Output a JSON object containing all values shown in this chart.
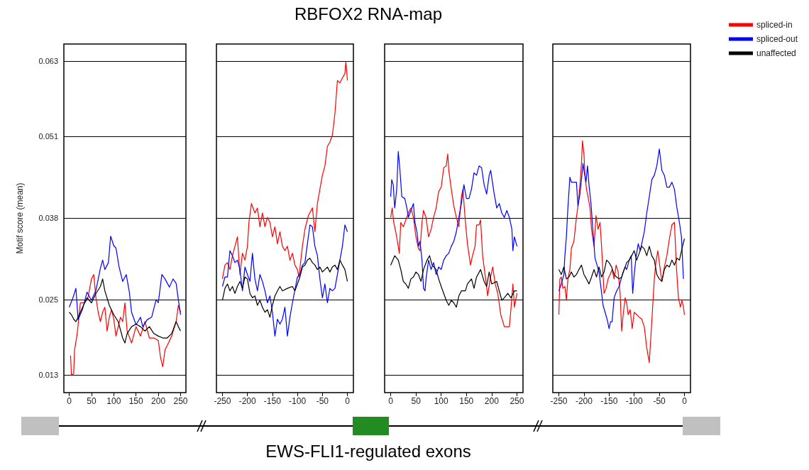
{
  "chart_data": [
    {
      "type": "other",
      "title": "RBFOX2 RNA-map",
      "annotations": [
        "EWS-FLI1-regulated exons"
      ]
    },
    {
      "type": "line",
      "ylabel": "Motif score (mean)",
      "xlim": [
        -12,
        262
      ],
      "xticks": [
        0,
        50,
        100,
        150,
        200,
        250
      ],
      "ylim": [
        0.0102,
        0.0657
      ],
      "yticks": [
        0.013,
        0.025,
        0.038,
        0.051,
        0.063
      ],
      "grid": "y",
      "series": [
        {
          "color": "#ff0000",
          "x": [
            3,
            5,
            10,
            12,
            18,
            25,
            35,
            42,
            50,
            55,
            60,
            65,
            70,
            75,
            80,
            85,
            90,
            95,
            100,
            105,
            110,
            115,
            120,
            125,
            130,
            140,
            150,
            160,
            170,
            180,
            190,
            200,
            205,
            210,
            215,
            220,
            230,
            240,
            245,
            250
          ],
          "values": [
            0.0161,
            0.013,
            0.0132,
            0.017,
            0.0196,
            0.0245,
            0.0245,
            0.0253,
            0.0283,
            0.029,
            0.0253,
            0.023,
            0.0215,
            0.023,
            0.0238,
            0.02,
            0.0222,
            0.0234,
            0.0219,
            0.0192,
            0.0207,
            0.0222,
            0.0215,
            0.0245,
            0.02,
            0.0181,
            0.0207,
            0.0192,
            0.0215,
            0.0189,
            0.0189,
            0.0185,
            0.0158,
            0.0143,
            0.017,
            0.0177,
            0.0192,
            0.0215,
            0.0241,
            0.023
          ]
        },
        {
          "color": "#0000ff",
          "x": [
            0,
            8,
            15,
            20,
            30,
            40,
            50,
            60,
            70,
            75,
            80,
            88,
            93,
            100,
            105,
            112,
            120,
            128,
            135,
            140,
            150,
            160,
            165,
            175,
            185,
            195,
            200,
            208,
            215,
            225,
            233,
            240,
            245,
            250
          ],
          "values": [
            0.0238,
            0.0252,
            0.0268,
            0.0218,
            0.0235,
            0.0262,
            0.0249,
            0.0265,
            0.03,
            0.0313,
            0.0298,
            0.0309,
            0.0351,
            0.0336,
            0.0332,
            0.0302,
            0.0279,
            0.029,
            0.0262,
            0.023,
            0.021,
            0.0222,
            0.0207,
            0.0218,
            0.0222,
            0.025,
            0.0245,
            0.029,
            0.0283,
            0.027,
            0.0283,
            0.0276,
            0.025,
            0.0226
          ]
        },
        {
          "color": "#000000",
          "x": [
            0,
            5,
            10,
            15,
            20,
            30,
            40,
            50,
            60,
            70,
            75,
            80,
            90,
            100,
            110,
            120,
            125,
            130,
            140,
            150,
            160,
            170,
            180,
            190,
            200,
            210,
            220,
            230,
            240,
            245,
            250
          ],
          "values": [
            0.023,
            0.0226,
            0.0219,
            0.0215,
            0.0222,
            0.0238,
            0.0253,
            0.0245,
            0.026,
            0.0271,
            0.0283,
            0.0264,
            0.0241,
            0.0226,
            0.0215,
            0.0189,
            0.0181,
            0.0196,
            0.0207,
            0.0211,
            0.0207,
            0.02,
            0.0207,
            0.0196,
            0.0192,
            0.0189,
            0.0189,
            0.0196,
            0.0215,
            0.0207,
            0.02
          ]
        }
      ]
    },
    {
      "type": "line",
      "xlim": [
        -262,
        12
      ],
      "xticks": [
        -250,
        -200,
        -150,
        -100,
        -50,
        0
      ],
      "ylim": [
        0.0102,
        0.0657
      ],
      "yticks": [
        0.013,
        0.025,
        0.038,
        0.051,
        0.063
      ],
      "grid": "y",
      "tick_labels": "x",
      "series": [
        {
          "color": "#ff0000",
          "x": [
            -250,
            -245,
            -240,
            -235,
            -230,
            -225,
            -220,
            -215,
            -210,
            -205,
            -200,
            -197,
            -192,
            -185,
            -180,
            -175,
            -170,
            -165,
            -160,
            -155,
            -150,
            -145,
            -140,
            -135,
            -130,
            -125,
            -120,
            -115,
            -110,
            -105,
            -100,
            -97,
            -90,
            -85,
            -78,
            -70,
            -65,
            -60,
            -55,
            -50,
            -45,
            -40,
            -35,
            -30,
            -25,
            -20,
            -15,
            -10,
            -5,
            -3,
            0
          ],
          "values": [
            0.0283,
            0.0305,
            0.0309,
            0.0298,
            0.032,
            0.0335,
            0.035,
            0.029,
            0.0324,
            0.0313,
            0.0335,
            0.0373,
            0.0403,
            0.0388,
            0.0396,
            0.0366,
            0.0388,
            0.0366,
            0.0381,
            0.0373,
            0.035,
            0.0366,
            0.0339,
            0.0358,
            0.0335,
            0.0328,
            0.0335,
            0.0313,
            0.0324,
            0.0305,
            0.0298,
            0.0286,
            0.0335,
            0.0362,
            0.0384,
            0.0396,
            0.0358,
            0.0403,
            0.0426,
            0.0448,
            0.0463,
            0.0494,
            0.0501,
            0.0512,
            0.0546,
            0.0599,
            0.0595,
            0.0603,
            0.061,
            0.0629,
            0.0599
          ]
        },
        {
          "color": "#0000ff",
          "x": [
            -250,
            -245,
            -240,
            -235,
            -230,
            -225,
            -220,
            -215,
            -210,
            -205,
            -200,
            -195,
            -190,
            -185,
            -180,
            -175,
            -170,
            -165,
            -160,
            -155,
            -150,
            -145,
            -140,
            -135,
            -130,
            -125,
            -120,
            -115,
            -110,
            -100,
            -95,
            -90,
            -85,
            -80,
            -75,
            -70,
            -65,
            -60,
            -55,
            -50,
            -45,
            -40,
            -35,
            -30,
            -25,
            -20,
            -15,
            -10,
            -5,
            0
          ],
          "values": [
            0.0271,
            0.0286,
            0.0286,
            0.0328,
            0.032,
            0.0309,
            0.0313,
            0.0298,
            0.0264,
            0.0302,
            0.029,
            0.0279,
            0.0324,
            0.0283,
            0.0264,
            0.029,
            0.0279,
            0.0264,
            0.0245,
            0.0256,
            0.023,
            0.0192,
            0.0219,
            0.0211,
            0.0219,
            0.0238,
            0.0192,
            0.0222,
            0.0245,
            0.0286,
            0.029,
            0.0305,
            0.0309,
            0.0339,
            0.0369,
            0.0366,
            0.0335,
            0.032,
            0.0283,
            0.0253,
            0.0275,
            0.0245,
            0.0268,
            0.0264,
            0.0268,
            0.029,
            0.0313,
            0.0335,
            0.0369,
            0.0358
          ]
        },
        {
          "color": "#000000",
          "x": [
            -250,
            -245,
            -240,
            -235,
            -230,
            -225,
            -220,
            -215,
            -210,
            -205,
            -200,
            -195,
            -190,
            -185,
            -180,
            -175,
            -170,
            -165,
            -160,
            -155,
            -150,
            -145,
            -140,
            -135,
            -130,
            -120,
            -110,
            -105,
            -100,
            -95,
            -90,
            -85,
            -80,
            -75,
            -70,
            -65,
            -60,
            -55,
            -50,
            -45,
            -40,
            -35,
            -30,
            -25,
            -20,
            -15,
            -10,
            -5,
            0
          ],
          "values": [
            0.0249,
            0.0268,
            0.0275,
            0.0264,
            0.0271,
            0.026,
            0.0271,
            0.0279,
            0.0268,
            0.0286,
            0.0283,
            0.026,
            0.0253,
            0.0256,
            0.0241,
            0.0249,
            0.0238,
            0.023,
            0.0234,
            0.0222,
            0.0241,
            0.0256,
            0.0264,
            0.0271,
            0.0264,
            0.0268,
            0.0271,
            0.0264,
            0.0275,
            0.0286,
            0.0302,
            0.0305,
            0.0313,
            0.0316,
            0.0309,
            0.0305,
            0.0298,
            0.0302,
            0.0294,
            0.0298,
            0.0302,
            0.0294,
            0.0302,
            0.0305,
            0.0298,
            0.0313,
            0.0305,
            0.0298,
            0.0279
          ]
        }
      ]
    },
    {
      "type": "line",
      "xlim": [
        -12,
        262
      ],
      "xticks": [
        0,
        50,
        100,
        150,
        200,
        250
      ],
      "ylim": [
        0.0102,
        0.0657
      ],
      "yticks": [
        0.013,
        0.025,
        0.038,
        0.051,
        0.063
      ],
      "grid": "y",
      "tick_labels": "x",
      "series": [
        {
          "color": "#ff0000",
          "x": [
            0,
            3,
            6,
            10,
            15,
            17,
            20,
            25,
            30,
            35,
            40,
            45,
            50,
            55,
            58,
            62,
            65,
            70,
            75,
            80,
            85,
            90,
            95,
            100,
            105,
            110,
            113,
            115,
            120,
            125,
            130,
            135,
            140,
            143,
            148,
            152,
            158,
            162,
            167,
            170,
            175,
            178,
            182,
            188,
            192,
            197,
            202,
            207,
            212,
            218,
            225,
            235,
            238,
            242,
            245,
            250
          ],
          "values": [
            0.0381,
            0.0396,
            0.0373,
            0.0358,
            0.0335,
            0.0324,
            0.0373,
            0.0366,
            0.0377,
            0.0388,
            0.0396,
            0.0381,
            0.035,
            0.0331,
            0.0328,
            0.0373,
            0.0392,
            0.0381,
            0.035,
            0.0362,
            0.0381,
            0.0396,
            0.0422,
            0.0429,
            0.046,
            0.0463,
            0.0482,
            0.0456,
            0.0426,
            0.0399,
            0.0381,
            0.0366,
            0.0414,
            0.0426,
            0.0373,
            0.0339,
            0.0305,
            0.032,
            0.0335,
            0.0369,
            0.0369,
            0.0377,
            0.032,
            0.0283,
            0.0256,
            0.0283,
            0.0302,
            0.0275,
            0.026,
            0.0226,
            0.0207,
            0.0207,
            0.0234,
            0.0275,
            0.0238,
            0.026
          ]
        },
        {
          "color": "#0000ff",
          "x": [
            0,
            2,
            5,
            8,
            12,
            15,
            18,
            22,
            28,
            32,
            35,
            40,
            45,
            48,
            52,
            55,
            58,
            62,
            65,
            68,
            70,
            75,
            80,
            85,
            90,
            95,
            100,
            105,
            110,
            115,
            120,
            125,
            130,
            135,
            140,
            145,
            150,
            155,
            160,
            165,
            170,
            175,
            180,
            185,
            190,
            195,
            198,
            205,
            210,
            215,
            220,
            225,
            230,
            235,
            240,
            242,
            245,
            250
          ],
          "values": [
            0.0414,
            0.0441,
            0.0433,
            0.0396,
            0.0426,
            0.0486,
            0.046,
            0.0414,
            0.0411,
            0.0396,
            0.0381,
            0.0392,
            0.0403,
            0.0373,
            0.0358,
            0.0335,
            0.0343,
            0.0313,
            0.0268,
            0.0264,
            0.0283,
            0.0313,
            0.0298,
            0.0309,
            0.029,
            0.0302,
            0.0298,
            0.0313,
            0.032,
            0.0324,
            0.0335,
            0.0343,
            0.0358,
            0.0381,
            0.0403,
            0.0433,
            0.0411,
            0.0411,
            0.0426,
            0.0452,
            0.0448,
            0.0463,
            0.046,
            0.0433,
            0.0418,
            0.0448,
            0.0456,
            0.0418,
            0.0396,
            0.0403,
            0.0388,
            0.0381,
            0.0392,
            0.0381,
            0.0362,
            0.0328,
            0.035,
            0.0335
          ]
        },
        {
          "color": "#000000",
          "x": [
            0,
            8,
            15,
            20,
            25,
            30,
            35,
            40,
            45,
            50,
            55,
            60,
            65,
            72,
            77,
            82,
            90,
            95,
            100,
            105,
            110,
            115,
            120,
            125,
            130,
            135,
            140,
            148,
            152,
            160,
            165,
            170,
            178,
            185,
            190,
            195,
            200,
            210,
            215,
            220,
            225,
            232,
            238,
            245,
            250
          ],
          "values": [
            0.0305,
            0.032,
            0.0313,
            0.0298,
            0.0279,
            0.0275,
            0.0268,
            0.0283,
            0.0286,
            0.0294,
            0.029,
            0.0279,
            0.0298,
            0.0313,
            0.032,
            0.0305,
            0.0298,
            0.0283,
            0.0271,
            0.026,
            0.0249,
            0.0241,
            0.0249,
            0.0245,
            0.0238,
            0.0256,
            0.0264,
            0.0264,
            0.0275,
            0.0283,
            0.0268,
            0.0286,
            0.0298,
            0.0279,
            0.0271,
            0.0294,
            0.0275,
            0.0279,
            0.0264,
            0.0249,
            0.0253,
            0.026,
            0.0253,
            0.0264,
            0.0264
          ]
        }
      ]
    },
    {
      "type": "line",
      "xlim": [
        -262,
        12
      ],
      "xticks": [
        -250,
        -200,
        -150,
        -100,
        -50,
        0
      ],
      "ylim": [
        0.0102,
        0.0657
      ],
      "yticks": [
        0.013,
        0.025,
        0.038,
        0.051,
        0.063
      ],
      "grid": "y",
      "tick_labels": "x",
      "legend": "right",
      "series": [
        {
          "name": "spliced-in",
          "color": "#ff0000",
          "x": [
            -250,
            -248,
            -245,
            -242,
            -238,
            -235,
            -232,
            -228,
            -225,
            -220,
            -215,
            -212,
            -208,
            -205,
            -203,
            -200,
            -198,
            -195,
            -192,
            -188,
            -185,
            -180,
            -176,
            -172,
            -168,
            -165,
            -162,
            -160,
            -156,
            -152,
            -148,
            -144,
            -140,
            -136,
            -132,
            -128,
            -125,
            -122,
            -118,
            -115,
            -112,
            -108,
            -104,
            -100,
            -95,
            -90,
            -85,
            -80,
            -75,
            -70,
            -65,
            -60,
            -57,
            -53,
            -50,
            -45,
            -40,
            -35,
            -30,
            -25,
            -20,
            -16,
            -12,
            -8,
            -5,
            -2,
            0
          ],
          "values": [
            0.0226,
            0.0283,
            0.0286,
            0.0268,
            0.0271,
            0.0249,
            0.0283,
            0.0298,
            0.0332,
            0.0343,
            0.0381,
            0.0399,
            0.0433,
            0.0467,
            0.0503,
            0.0482,
            0.0448,
            0.0426,
            0.0414,
            0.0396,
            0.0362,
            0.0335,
            0.0384,
            0.0362,
            0.0373,
            0.0335,
            0.029,
            0.026,
            0.0268,
            0.0283,
            0.029,
            0.0298,
            0.0283,
            0.0305,
            0.0294,
            0.026,
            0.02,
            0.0226,
            0.0253,
            0.0245,
            0.0226,
            0.0234,
            0.0204,
            0.023,
            0.0226,
            0.0222,
            0.0219,
            0.0207,
            0.0173,
            0.015,
            0.0215,
            0.0283,
            0.0309,
            0.0328,
            0.0309,
            0.0279,
            0.0302,
            0.032,
            0.0347,
            0.0369,
            0.0373,
            0.0302,
            0.0253,
            0.0238,
            0.0249,
            0.0238,
            0.0226
          ]
        },
        {
          "name": "spliced-out",
          "color": "#0000ff",
          "x": [
            -250,
            -245,
            -240,
            -238,
            -235,
            -232,
            -228,
            -225,
            -220,
            -215,
            -212,
            -208,
            -205,
            -202,
            -200,
            -196,
            -193,
            -190,
            -186,
            -182,
            -178,
            -174,
            -170,
            -166,
            -162,
            -158,
            -154,
            -150,
            -147,
            -144,
            -140,
            -135,
            -130,
            -126,
            -122,
            -118,
            -115,
            -110,
            -106,
            -103,
            -100,
            -96,
            -92,
            -88,
            -84,
            -80,
            -75,
            -70,
            -65,
            -60,
            -55,
            -50,
            -45,
            -40,
            -35,
            -30,
            -25,
            -20,
            -15,
            -10,
            -6,
            -2
          ],
          "values": [
            0.0264,
            0.0275,
            0.029,
            0.032,
            0.035,
            0.0396,
            0.0445,
            0.0437,
            0.0437,
            0.0437,
            0.0399,
            0.0418,
            0.0441,
            0.0467,
            0.0456,
            0.0437,
            0.0463,
            0.0433,
            0.0403,
            0.0358,
            0.0316,
            0.0305,
            0.0294,
            0.0268,
            0.0241,
            0.023,
            0.0219,
            0.0204,
            0.0215,
            0.0215,
            0.0253,
            0.0264,
            0.0271,
            0.0283,
            0.0294,
            0.0302,
            0.0298,
            0.0313,
            0.032,
            0.026,
            0.029,
            0.032,
            0.0339,
            0.0328,
            0.0343,
            0.0358,
            0.0388,
            0.0414,
            0.0441,
            0.0448,
            0.0463,
            0.049,
            0.0456,
            0.0448,
            0.0429,
            0.0429,
            0.0437,
            0.0426,
            0.0396,
            0.0373,
            0.035,
            0.0283
          ]
        },
        {
          "name": "unaffected",
          "color": "#000000",
          "x": [
            -250,
            -245,
            -240,
            -235,
            -230,
            -225,
            -220,
            -215,
            -210,
            -205,
            -200,
            -195,
            -190,
            -185,
            -180,
            -175,
            -170,
            -165,
            -160,
            -155,
            -150,
            -145,
            -140,
            -135,
            -130,
            -125,
            -120,
            -115,
            -110,
            -105,
            -100,
            -95,
            -90,
            -85,
            -80,
            -75,
            -70,
            -65,
            -60,
            -55,
            -50,
            -45,
            -40,
            -35,
            -30,
            -25,
            -20,
            -15,
            -10,
            -5,
            0
          ],
          "values": [
            0.0298,
            0.029,
            0.0302,
            0.0283,
            0.0286,
            0.0294,
            0.0286,
            0.029,
            0.0298,
            0.0305,
            0.029,
            0.0283,
            0.0275,
            0.0286,
            0.0298,
            0.0286,
            0.0302,
            0.0286,
            0.0294,
            0.0313,
            0.0309,
            0.0302,
            0.029,
            0.0286,
            0.0283,
            0.0286,
            0.0298,
            0.0309,
            0.0313,
            0.032,
            0.0328,
            0.0313,
            0.0324,
            0.0335,
            0.0331,
            0.032,
            0.0335,
            0.032,
            0.0313,
            0.029,
            0.0283,
            0.0279,
            0.0298,
            0.0305,
            0.0302,
            0.0313,
            0.0305,
            0.0316,
            0.0313,
            0.0331,
            0.0347
          ]
        }
      ]
    }
  ]
}
